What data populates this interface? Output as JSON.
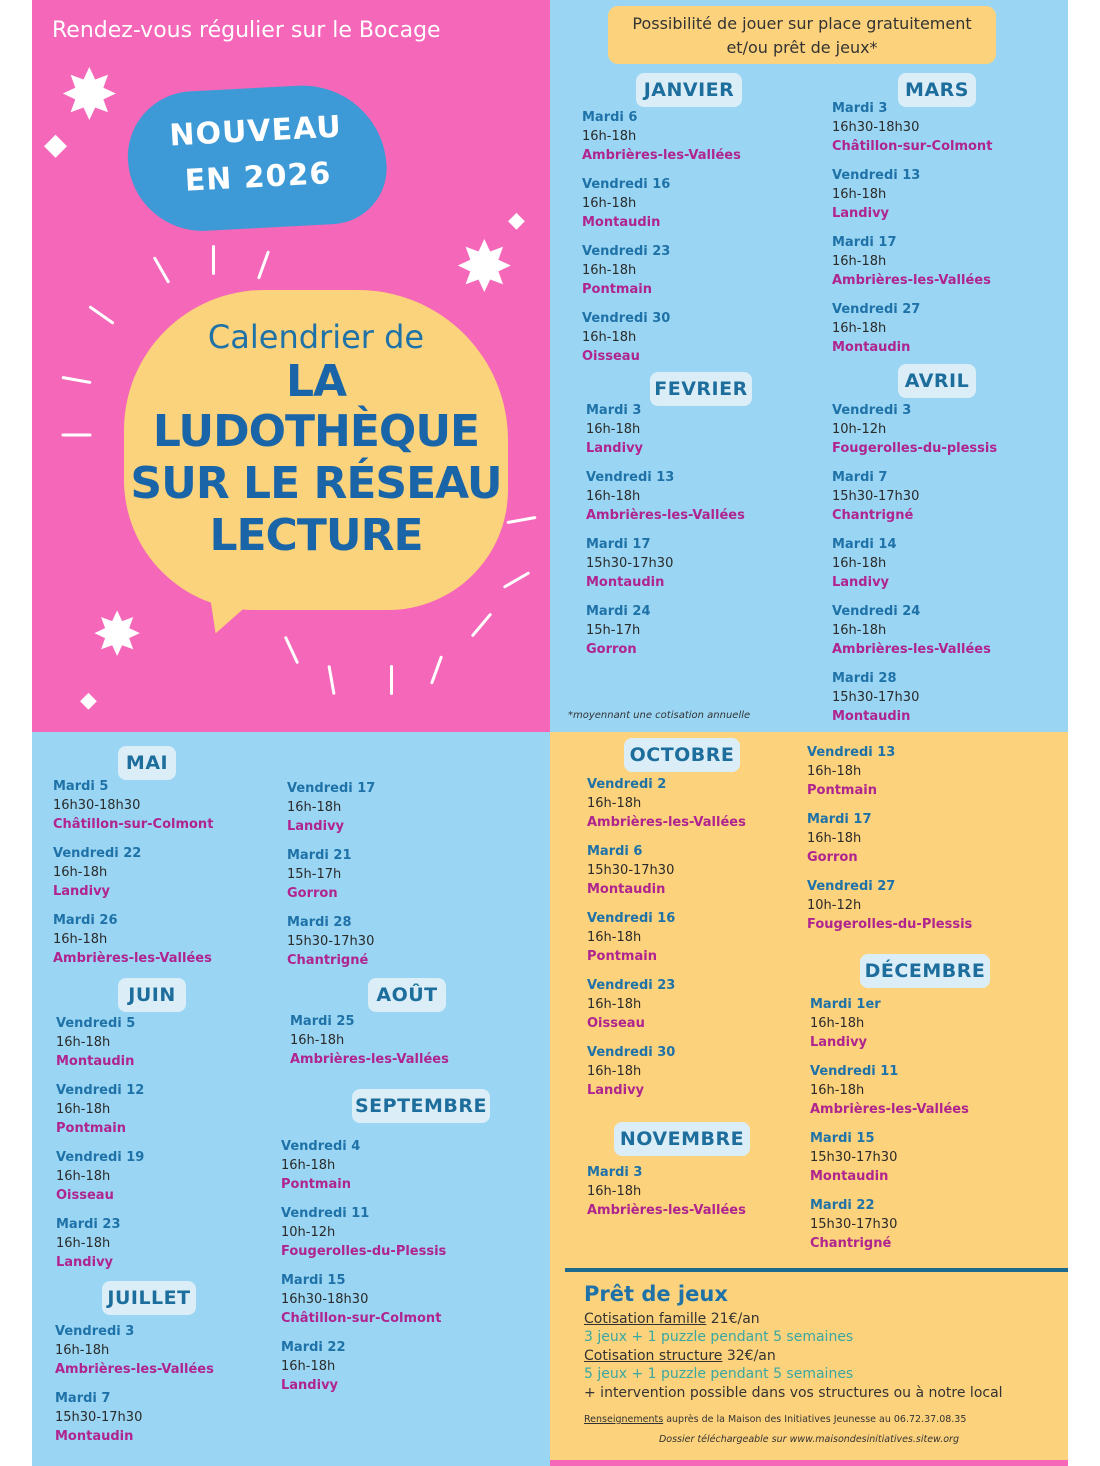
{
  "poster": {
    "top_title": "Rendez-vous régulier sur le Bocage",
    "nouveau_line1": "NOUVEAU",
    "nouveau_line2": "EN 2026",
    "calendrier_de": "Calendrier de",
    "title_lines": [
      "LA",
      "LUDOTHÈQUE",
      "SUR LE RÉSEAU",
      "LECTURE"
    ],
    "note_line1": "Possibilité de jouer sur place gratuitement",
    "note_line2": "et/ou prêt de jeux*",
    "footnote": "*moyennant une cotisation annuelle"
  },
  "colors": {
    "pink": "#f567b9",
    "blue": "#9ad6f3",
    "yellow": "#fcd27c",
    "day": "#1f72a8",
    "place": "#b0248f"
  },
  "months": [
    {
      "name": "JANVIER",
      "events": [
        {
          "day": "Mardi 6",
          "time": "16h-18h",
          "place": "Ambrières-les-Vallées"
        },
        {
          "day": "Vendredi 16",
          "time": "16h-18h",
          "place": "Montaudin"
        },
        {
          "day": "Vendredi 23",
          "time": "16h-18h",
          "place": "Pontmain"
        },
        {
          "day": "Vendredi 30",
          "time": "16h-18h",
          "place": "Oisseau"
        }
      ]
    },
    {
      "name": "FEVRIER",
      "events": [
        {
          "day": "Mardi 3",
          "time": "16h-18h",
          "place": "Landivy"
        },
        {
          "day": "Vendredi 13",
          "time": "16h-18h",
          "place": "Ambrières-les-Vallées"
        },
        {
          "day": "Mardi 17",
          "time": "15h30-17h30",
          "place": "Montaudin"
        },
        {
          "day": "Mardi 24",
          "time": "15h-17h",
          "place": "Gorron"
        }
      ]
    },
    {
      "name": "MARS",
      "events": [
        {
          "day": "Mardi 3",
          "time": "16h30-18h30",
          "place": "Châtillon-sur-Colmont"
        },
        {
          "day": "Vendredi 13",
          "time": "16h-18h",
          "place": "Landivy"
        },
        {
          "day": "Mardi 17",
          "time": "16h-18h",
          "place": "Ambrières-les-Vallées"
        },
        {
          "day": "Vendredi 27",
          "time": "16h-18h",
          "place": "Montaudin"
        }
      ]
    },
    {
      "name": "AVRIL",
      "events": [
        {
          "day": "Vendredi 3",
          "time": "10h-12h",
          "place": "Fougerolles-du-plessis"
        },
        {
          "day": "Mardi 7",
          "time": "15h30-17h30",
          "place": "Chantrigné"
        },
        {
          "day": "Mardi 14",
          "time": "16h-18h",
          "place": "Landivy"
        },
        {
          "day": "Vendredi 24",
          "time": "16h-18h",
          "place": "Ambrières-les-Vallées"
        },
        {
          "day": "Mardi 28",
          "time": "15h30-17h30",
          "place": "Montaudin"
        }
      ]
    },
    {
      "name": "MAI",
      "events": [
        {
          "day": "Mardi 5",
          "time": "16h30-18h30",
          "place": "Châtillon-sur-Colmont"
        },
        {
          "day": "Vendredi 22",
          "time": "16h-18h",
          "place": "Landivy"
        },
        {
          "day": "Mardi 26",
          "time": "16h-18h",
          "place": "Ambrières-les-Vallées"
        },
        {
          "day": "Vendredi 17",
          "time": "16h-18h",
          "place": "Landivy"
        },
        {
          "day": "Mardi 21",
          "time": "15h-17h",
          "place": "Gorron"
        },
        {
          "day": "Mardi 28",
          "time": "15h30-17h30",
          "place": "Chantrigné"
        }
      ]
    },
    {
      "name": "JUIN",
      "events": [
        {
          "day": "Vendredi 5",
          "time": "16h-18h",
          "place": "Montaudin"
        },
        {
          "day": "Vendredi 12",
          "time": "16h-18h",
          "place": "Pontmain"
        },
        {
          "day": "Vendredi 19",
          "time": "16h-18h",
          "place": "Oisseau"
        },
        {
          "day": "Mardi 23",
          "time": "16h-18h",
          "place": "Landivy"
        }
      ]
    },
    {
      "name": "JUILLET",
      "events": [
        {
          "day": "Vendredi 3",
          "time": "16h-18h",
          "place": "Ambrières-les-Vallées"
        },
        {
          "day": "Mardi 7",
          "time": "15h30-17h30",
          "place": "Montaudin"
        }
      ]
    },
    {
      "name": "AOÛT",
      "events": [
        {
          "day": "Mardi 25",
          "time": "16h-18h",
          "place": "Ambrières-les-Vallées"
        }
      ]
    },
    {
      "name": "SEPTEMBRE",
      "events": [
        {
          "day": "Vendredi 4",
          "time": "16h-18h",
          "place": "Pontmain"
        },
        {
          "day": "Vendredi 11",
          "time": "10h-12h",
          "place": "Fougerolles-du-Plessis"
        },
        {
          "day": "Mardi 15",
          "time": "16h30-18h30",
          "place": "Châtillon-sur-Colmont"
        },
        {
          "day": "Mardi 22",
          "time": "16h-18h",
          "place": "Landivy"
        }
      ]
    },
    {
      "name": "OCTOBRE",
      "events": [
        {
          "day": "Vendredi 2",
          "time": "16h-18h",
          "place": "Ambrières-les-Vallées"
        },
        {
          "day": "Mardi 6",
          "time": "15h30-17h30",
          "place": "Montaudin"
        },
        {
          "day": "Vendredi 16",
          "time": "16h-18h",
          "place": "Pontmain"
        },
        {
          "day": "Vendredi 23",
          "time": "16h-18h",
          "place": "Oisseau"
        },
        {
          "day": "Vendredi 30",
          "time": "16h-18h",
          "place": "Landivy"
        },
        {
          "day": "Vendredi 13",
          "time": "16h-18h",
          "place": "Pontmain"
        },
        {
          "day": "Mardi 17",
          "time": "16h-18h",
          "place": "Gorron"
        },
        {
          "day": "Vendredi 27",
          "time": "10h-12h",
          "place": "Fougerolles-du-Plessis"
        }
      ]
    },
    {
      "name": "NOVEMBRE",
      "events": [
        {
          "day": "Mardi 3",
          "time": "16h-18h",
          "place": "Ambrières-les-Vallées"
        }
      ]
    },
    {
      "name": "DÉCEMBRE",
      "events": [
        {
          "day": "Mardi 1er",
          "time": "16h-18h",
          "place": "Landivy"
        },
        {
          "day": "Vendredi 11",
          "time": "16h-18h",
          "place": "Ambrières-les-Vallées"
        },
        {
          "day": "Mardi 15",
          "time": "15h30-17h30",
          "place": "Montaudin"
        },
        {
          "day": "Mardi 22",
          "time": "15h30-17h30",
          "place": "Chantrigné"
        }
      ]
    }
  ],
  "pret": {
    "title": "Prêt de jeux",
    "famille_label": "Cotisation famille",
    "famille_price": "21€/an",
    "famille_detail": "3 jeux + 1 puzzle pendant 5 semaines",
    "structure_label": "Cotisation structure",
    "structure_price": "32€/an",
    "structure_detail": "5 jeux + 1 puzzle pendant 5 semaines",
    "intervention": "+ intervention possible dans vos structures ou à notre local",
    "rens_label": "Renseignements",
    "rens_text": "auprès de la Maison des Initiatives Jeunesse  au 06.72.37.08.35",
    "dossier": "Dossier téléchargeable sur www.maisondesinitiatives.sitew.org"
  }
}
